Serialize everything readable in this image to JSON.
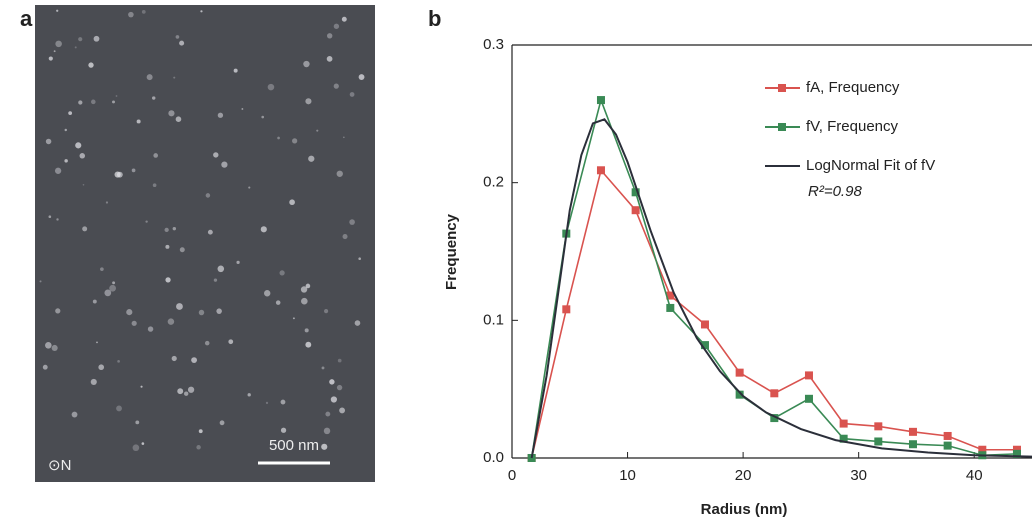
{
  "panel_a": {
    "label": "a",
    "orientation": "⊙N",
    "scale_bar": "500 nm"
  },
  "chart_data": {
    "type": "line",
    "panel_label": "b",
    "x_label": "Radius (nm)",
    "y_label": "Frequency",
    "x": [
      1.7,
      4.7,
      7.7,
      10.7,
      13.7,
      16.7,
      19.7,
      22.7,
      25.7,
      28.7,
      31.7,
      34.7,
      37.7,
      40.7,
      43.7
    ],
    "series": [
      {
        "name": "fA, Frequency",
        "color": "#d9534f",
        "markers": true,
        "values": [
          0,
          0.108,
          0.209,
          0.18,
          0.118,
          0.097,
          0.062,
          0.047,
          0.06,
          0.025,
          0.023,
          0.019,
          0.016,
          0.006,
          0.006
        ]
      },
      {
        "name": "fV, Frequency",
        "color": "#3a8a55",
        "markers": true,
        "values": [
          0,
          0.163,
          0.26,
          0.193,
          0.109,
          0.082,
          0.046,
          0.029,
          0.043,
          0.014,
          0.012,
          0.01,
          0.009,
          0.002,
          0.003
        ]
      },
      {
        "name": "LogNormal Fit of fV",
        "color": "#2b2f3a",
        "markers": false,
        "x": [
          1.7,
          3,
          4,
          5,
          6,
          7,
          8,
          9,
          10,
          11,
          12,
          14,
          16,
          18,
          20,
          22,
          25,
          28,
          32,
          36,
          40,
          45
        ],
        "values": [
          0,
          0.06,
          0.12,
          0.18,
          0.22,
          0.243,
          0.246,
          0.235,
          0.215,
          0.19,
          0.165,
          0.12,
          0.087,
          0.063,
          0.045,
          0.033,
          0.021,
          0.013,
          0.007,
          0.004,
          0.002,
          0.001
        ]
      }
    ],
    "annotation": "R²=0.98",
    "xlim": [
      0,
      45
    ],
    "ylim": [
      0,
      0.3
    ],
    "xticks": [
      0,
      10,
      20,
      30,
      40
    ],
    "yticks": [
      {
        "value": 0,
        "label": "0.0"
      },
      0.1,
      0.2,
      0.3
    ]
  }
}
